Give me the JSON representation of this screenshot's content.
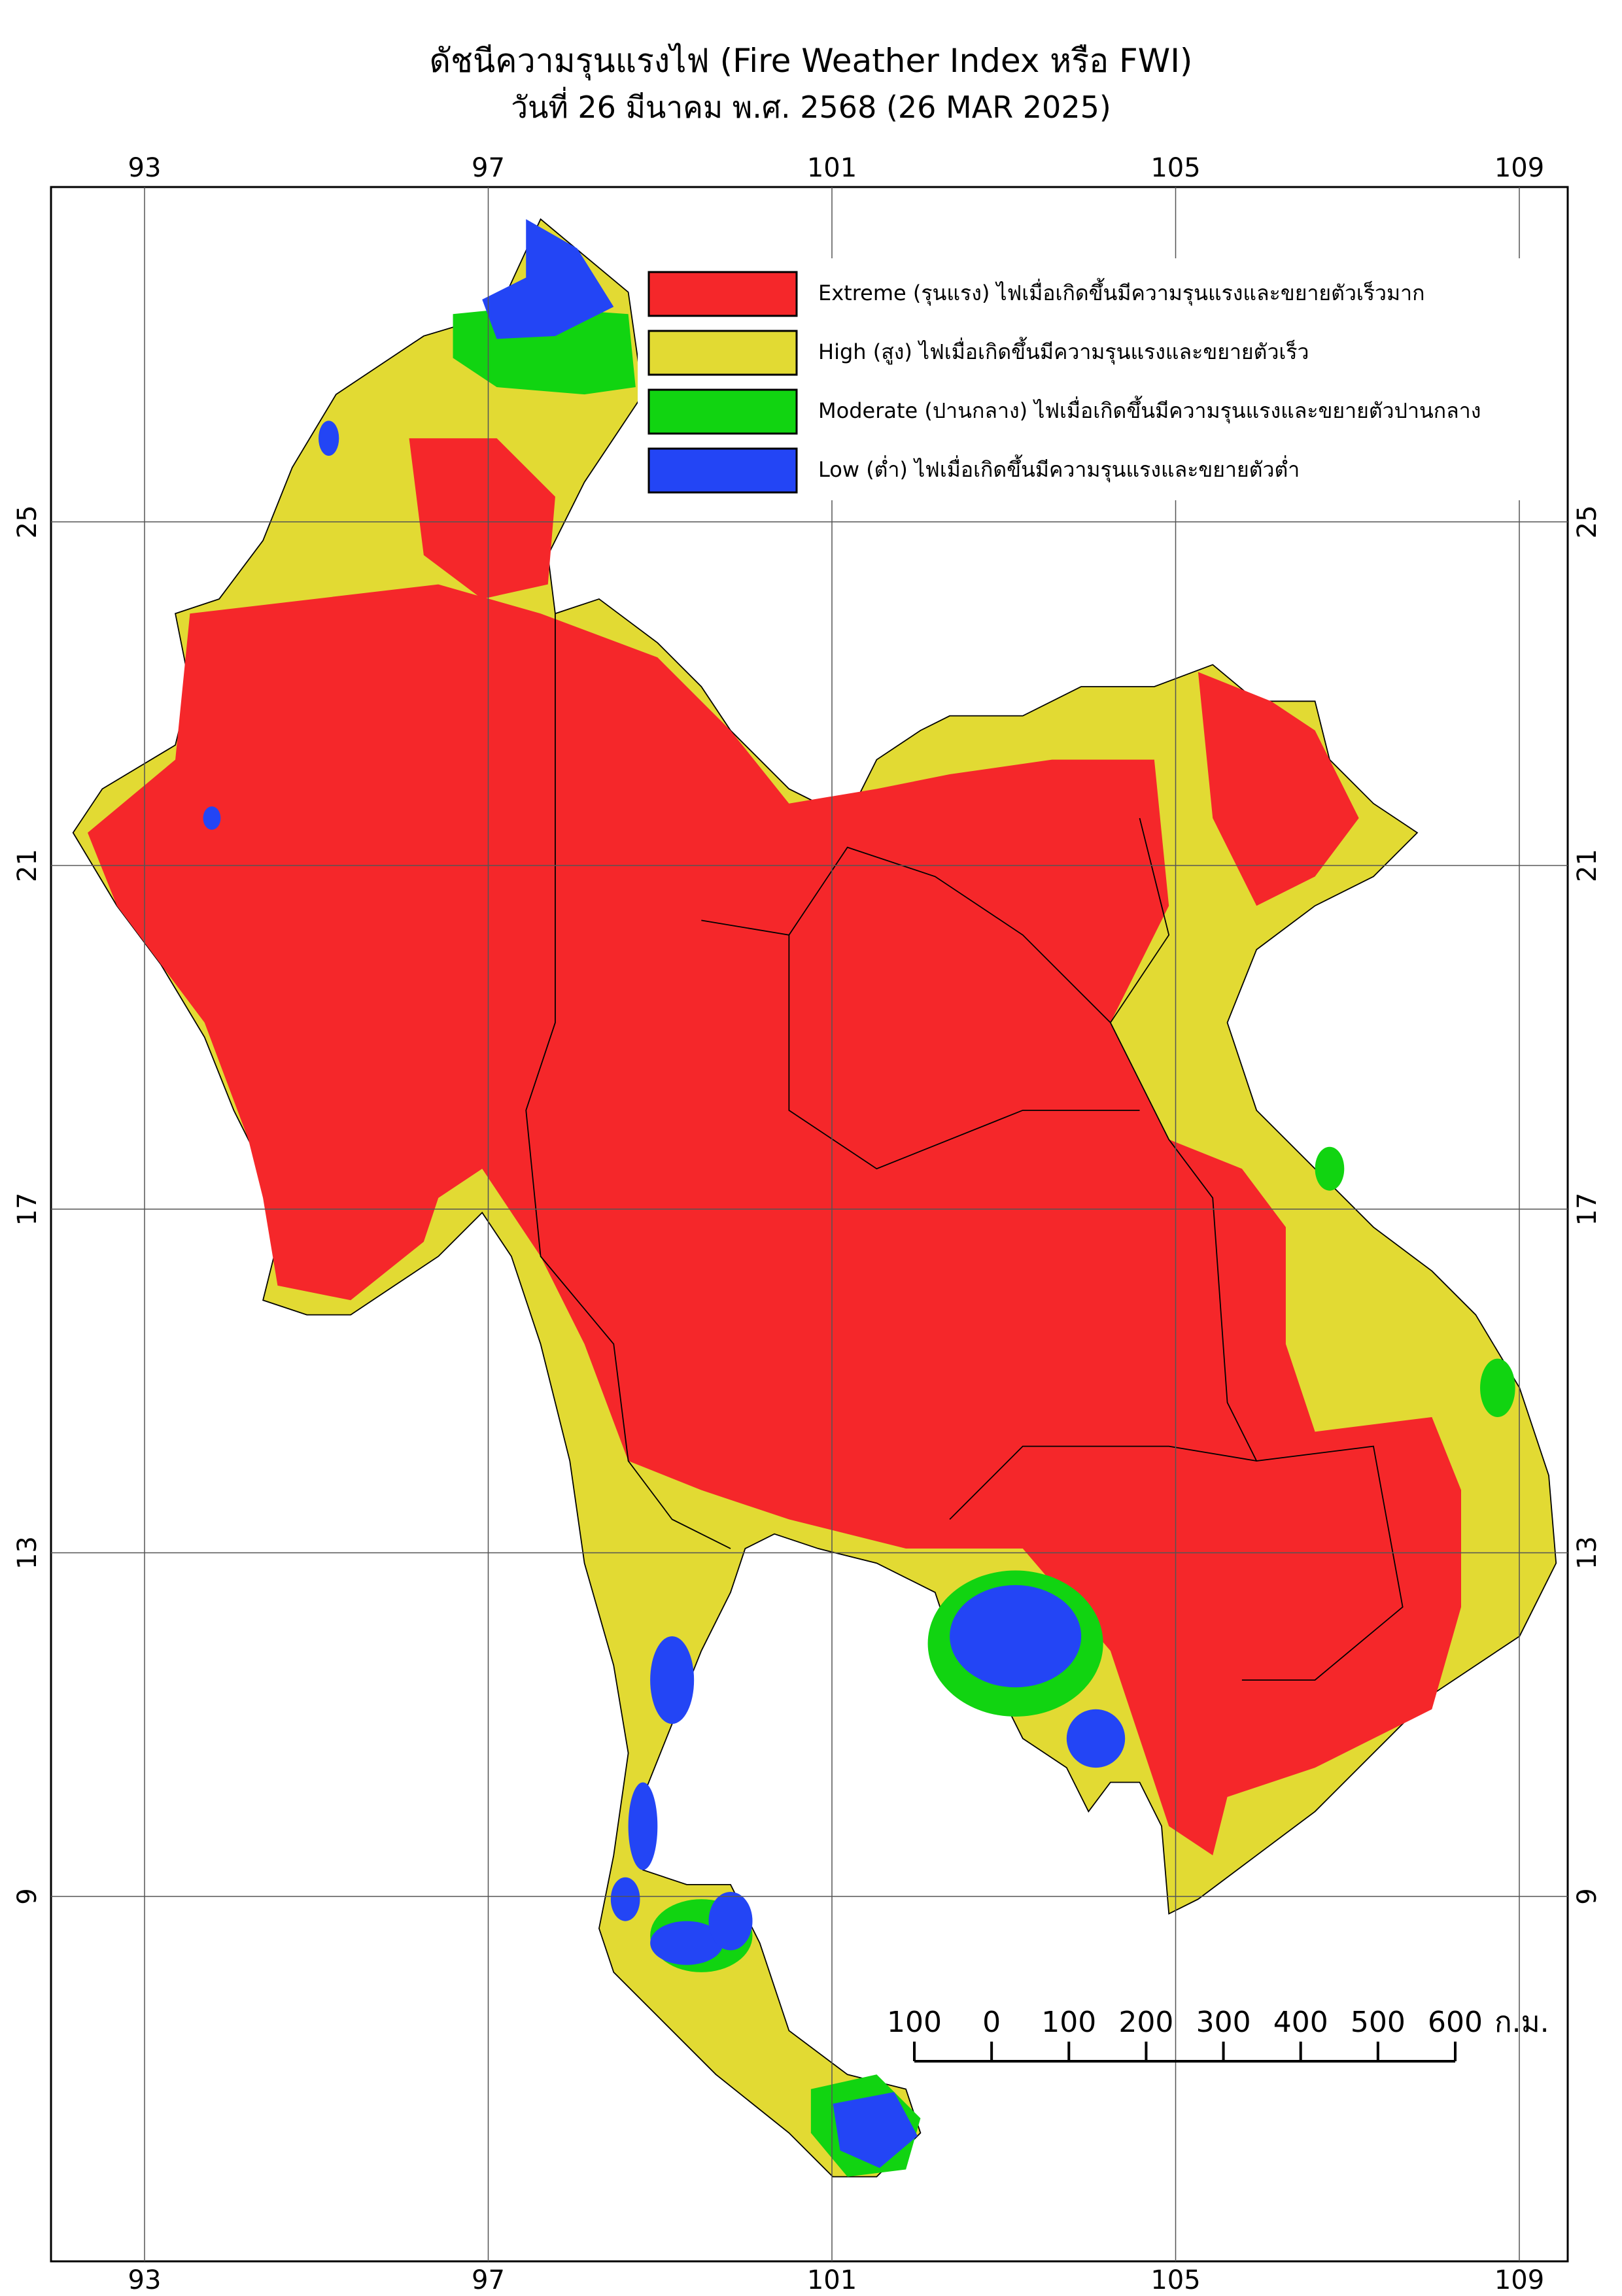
{
  "map": {
    "title": "ดัชนีความรุนแรงไฟ (Fire Weather Index หรือ FWI)",
    "subtitle": "วันที่ 26 มีนาคม พ.ศ. 2568 (26 MAR 2025)",
    "lon_ticks": [
      93,
      97,
      101,
      105,
      109
    ],
    "lat_ticks": [
      25,
      21,
      17,
      13,
      9
    ],
    "legend": [
      {
        "label": "Extreme (รุนแรง) ไฟเมื่อเกิดขึ้นมีความรุนแรงและขยายตัวเร็วมาก",
        "color": "#f5272a"
      },
      {
        "label": "High (สูง) ไฟเมื่อเกิดขึ้นมีความรุนแรงและขยายตัวเร็ว",
        "color": "#e2da33"
      },
      {
        "label": "Moderate (ปานกลาง) ไฟเมื่อเกิดขึ้นมีความรุนแรงและขยายตัวปานกลาง",
        "color": "#11d411"
      },
      {
        "label": "Low (ต่ำ) ไฟเมื่อเกิดขึ้นมีความรุนแรงและขยายตัวต่ำ",
        "color": "#2345f5"
      }
    ],
    "scale_bar": {
      "ticks": [
        {
          "value": -100,
          "label": "100"
        },
        0,
        100,
        200,
        300,
        400,
        500,
        600
      ],
      "unit": "ก.ม."
    }
  }
}
